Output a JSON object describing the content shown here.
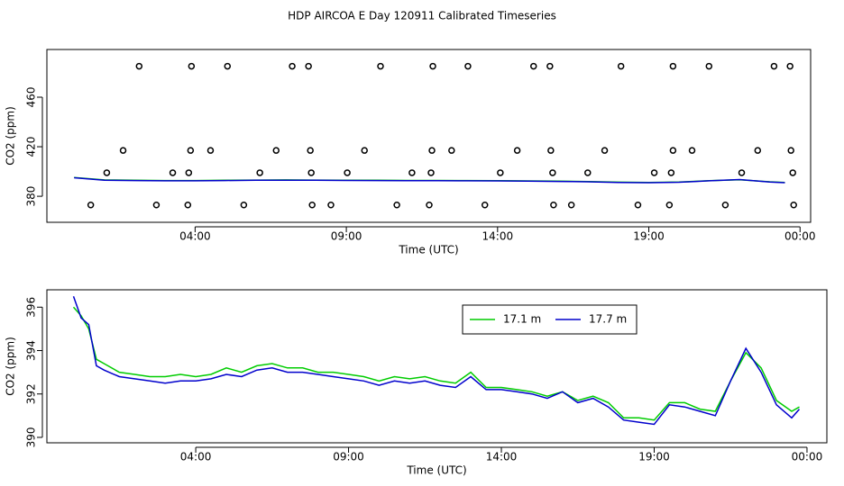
{
  "title": "HDP AIRCOA E  Day 120911  Calibrated Timeseries",
  "chart_data": [
    {
      "type": "scatter",
      "xlabel": "Time (UTC)",
      "ylabel": "CO2 (ppm)",
      "xlim": [
        -0.9,
        24.35
      ],
      "ylim": [
        359,
        498.5
      ],
      "xticks": [
        {
          "value": 4,
          "label": "04:00"
        },
        {
          "value": 9,
          "label": "09:00"
        },
        {
          "value": 14,
          "label": "14:00"
        },
        {
          "value": 19,
          "label": "19:00"
        },
        {
          "value": 24,
          "label": "00:00"
        }
      ],
      "yticks": [
        380,
        420,
        460
      ],
      "points": {
        "color": "#000000",
        "x": [
          2.15,
          3.88,
          5.07,
          7.21,
          7.75,
          10.13,
          11.86,
          13.02,
          15.19,
          15.73,
          18.08,
          19.8,
          20.99,
          23.14,
          23.67,
          1.62,
          3.85,
          4.51,
          6.68,
          7.81,
          9.6,
          11.83,
          12.48,
          14.65,
          15.76,
          17.54,
          19.8,
          20.43,
          22.6,
          23.7,
          1.08,
          3.26,
          3.79,
          6.14,
          7.84,
          9.03,
          11.17,
          11.8,
          14.09,
          15.82,
          16.98,
          19.18,
          19.74,
          22.07,
          23.76,
          0.55,
          2.72,
          3.76,
          5.61,
          7.87,
          8.49,
          10.67,
          11.74,
          13.58,
          15.85,
          16.44,
          18.64,
          19.68,
          21.53,
          23.79
        ],
        "values": [
          485,
          485,
          485,
          485,
          485,
          485,
          485,
          485,
          485,
          485,
          485,
          485,
          485,
          485,
          485,
          417,
          417,
          417,
          417,
          417,
          417,
          417,
          417,
          417,
          417,
          417,
          417,
          417,
          417,
          417,
          399,
          399,
          399,
          399,
          399,
          399,
          399,
          399,
          399,
          399,
          399,
          399,
          399,
          399,
          399,
          373,
          373,
          373,
          373,
          373,
          373,
          373,
          373,
          373,
          373,
          373,
          373,
          373,
          373,
          373
        ]
      },
      "x": [
        0,
        1,
        2,
        3,
        4,
        5,
        6,
        7,
        8,
        9,
        10,
        11,
        12,
        13,
        14,
        15,
        16,
        17,
        18,
        19,
        20,
        21,
        22,
        23,
        23.5
      ],
      "series": [
        {
          "color": "#00cc00",
          "values": [
            395.2,
            393.2,
            392.9,
            392.7,
            392.7,
            392.9,
            393.1,
            393.2,
            393.1,
            393.0,
            392.9,
            392.8,
            392.8,
            392.7,
            392.6,
            392.4,
            392.2,
            391.9,
            391.4,
            391.2,
            391.5,
            392.6,
            393.4,
            391.7,
            391.2
          ]
        },
        {
          "color": "#0000cc",
          "values": [
            395.0,
            393.0,
            392.7,
            392.5,
            392.5,
            392.7,
            392.9,
            393.0,
            392.9,
            392.8,
            392.7,
            392.6,
            392.6,
            392.5,
            392.4,
            392.2,
            392.0,
            391.7,
            391.2,
            391.0,
            391.3,
            392.5,
            393.5,
            391.5,
            391.0
          ]
        }
      ]
    },
    {
      "type": "line",
      "xlabel": "Time (UTC)",
      "ylabel": "CO2 (ppm)",
      "xlim": [
        -0.87,
        24.65
      ],
      "ylim": [
        389.75,
        396.8
      ],
      "xticks": [
        {
          "value": 4,
          "label": "04:00"
        },
        {
          "value": 9,
          "label": "09:00"
        },
        {
          "value": 14,
          "label": "14:00"
        },
        {
          "value": 19,
          "label": "19:00"
        },
        {
          "value": 24,
          "label": "00:00"
        }
      ],
      "yticks": [
        390,
        392,
        394,
        396
      ],
      "legend": "top",
      "x": [
        0,
        0.25,
        0.5,
        0.75,
        1,
        1.5,
        2,
        2.5,
        3,
        3.5,
        4,
        4.5,
        5,
        5.5,
        6,
        6.5,
        7,
        7.5,
        8,
        8.5,
        9,
        9.5,
        10,
        10.5,
        11,
        11.5,
        12,
        12.5,
        13,
        13.5,
        14,
        14.5,
        15,
        15.5,
        16,
        16.5,
        17,
        17.5,
        18,
        18.5,
        19,
        19.5,
        20,
        20.5,
        21,
        21.5,
        22,
        22.5,
        23,
        23.5,
        23.75
      ],
      "series": [
        {
          "name": "17.1 m",
          "color": "#00cc00",
          "values": [
            396.0,
            395.6,
            395.0,
            393.6,
            393.4,
            393.0,
            392.9,
            392.8,
            392.8,
            392.9,
            392.8,
            392.9,
            393.2,
            393.0,
            393.3,
            393.4,
            393.2,
            393.2,
            393.0,
            393.0,
            392.9,
            392.8,
            392.6,
            392.8,
            392.7,
            392.8,
            392.6,
            392.5,
            393.0,
            392.3,
            392.3,
            392.2,
            392.1,
            391.9,
            392.1,
            391.7,
            391.9,
            391.6,
            390.9,
            390.9,
            390.8,
            391.6,
            391.6,
            391.3,
            391.2,
            392.6,
            393.9,
            393.2,
            391.7,
            391.2,
            391.4
          ]
        },
        {
          "name": "17.7 m",
          "color": "#0000cc",
          "values": [
            396.5,
            395.5,
            395.2,
            393.3,
            393.1,
            392.8,
            392.7,
            392.6,
            392.5,
            392.6,
            392.6,
            392.7,
            392.9,
            392.8,
            393.1,
            393.2,
            393.0,
            393.0,
            392.9,
            392.8,
            392.7,
            392.6,
            392.4,
            392.6,
            392.5,
            392.6,
            392.4,
            392.3,
            392.8,
            392.2,
            392.2,
            392.1,
            392.0,
            391.8,
            392.1,
            391.6,
            391.8,
            391.4,
            390.8,
            390.7,
            390.6,
            391.5,
            391.4,
            391.2,
            391.0,
            392.6,
            394.1,
            393.0,
            391.5,
            390.9,
            391.3
          ]
        }
      ]
    }
  ]
}
